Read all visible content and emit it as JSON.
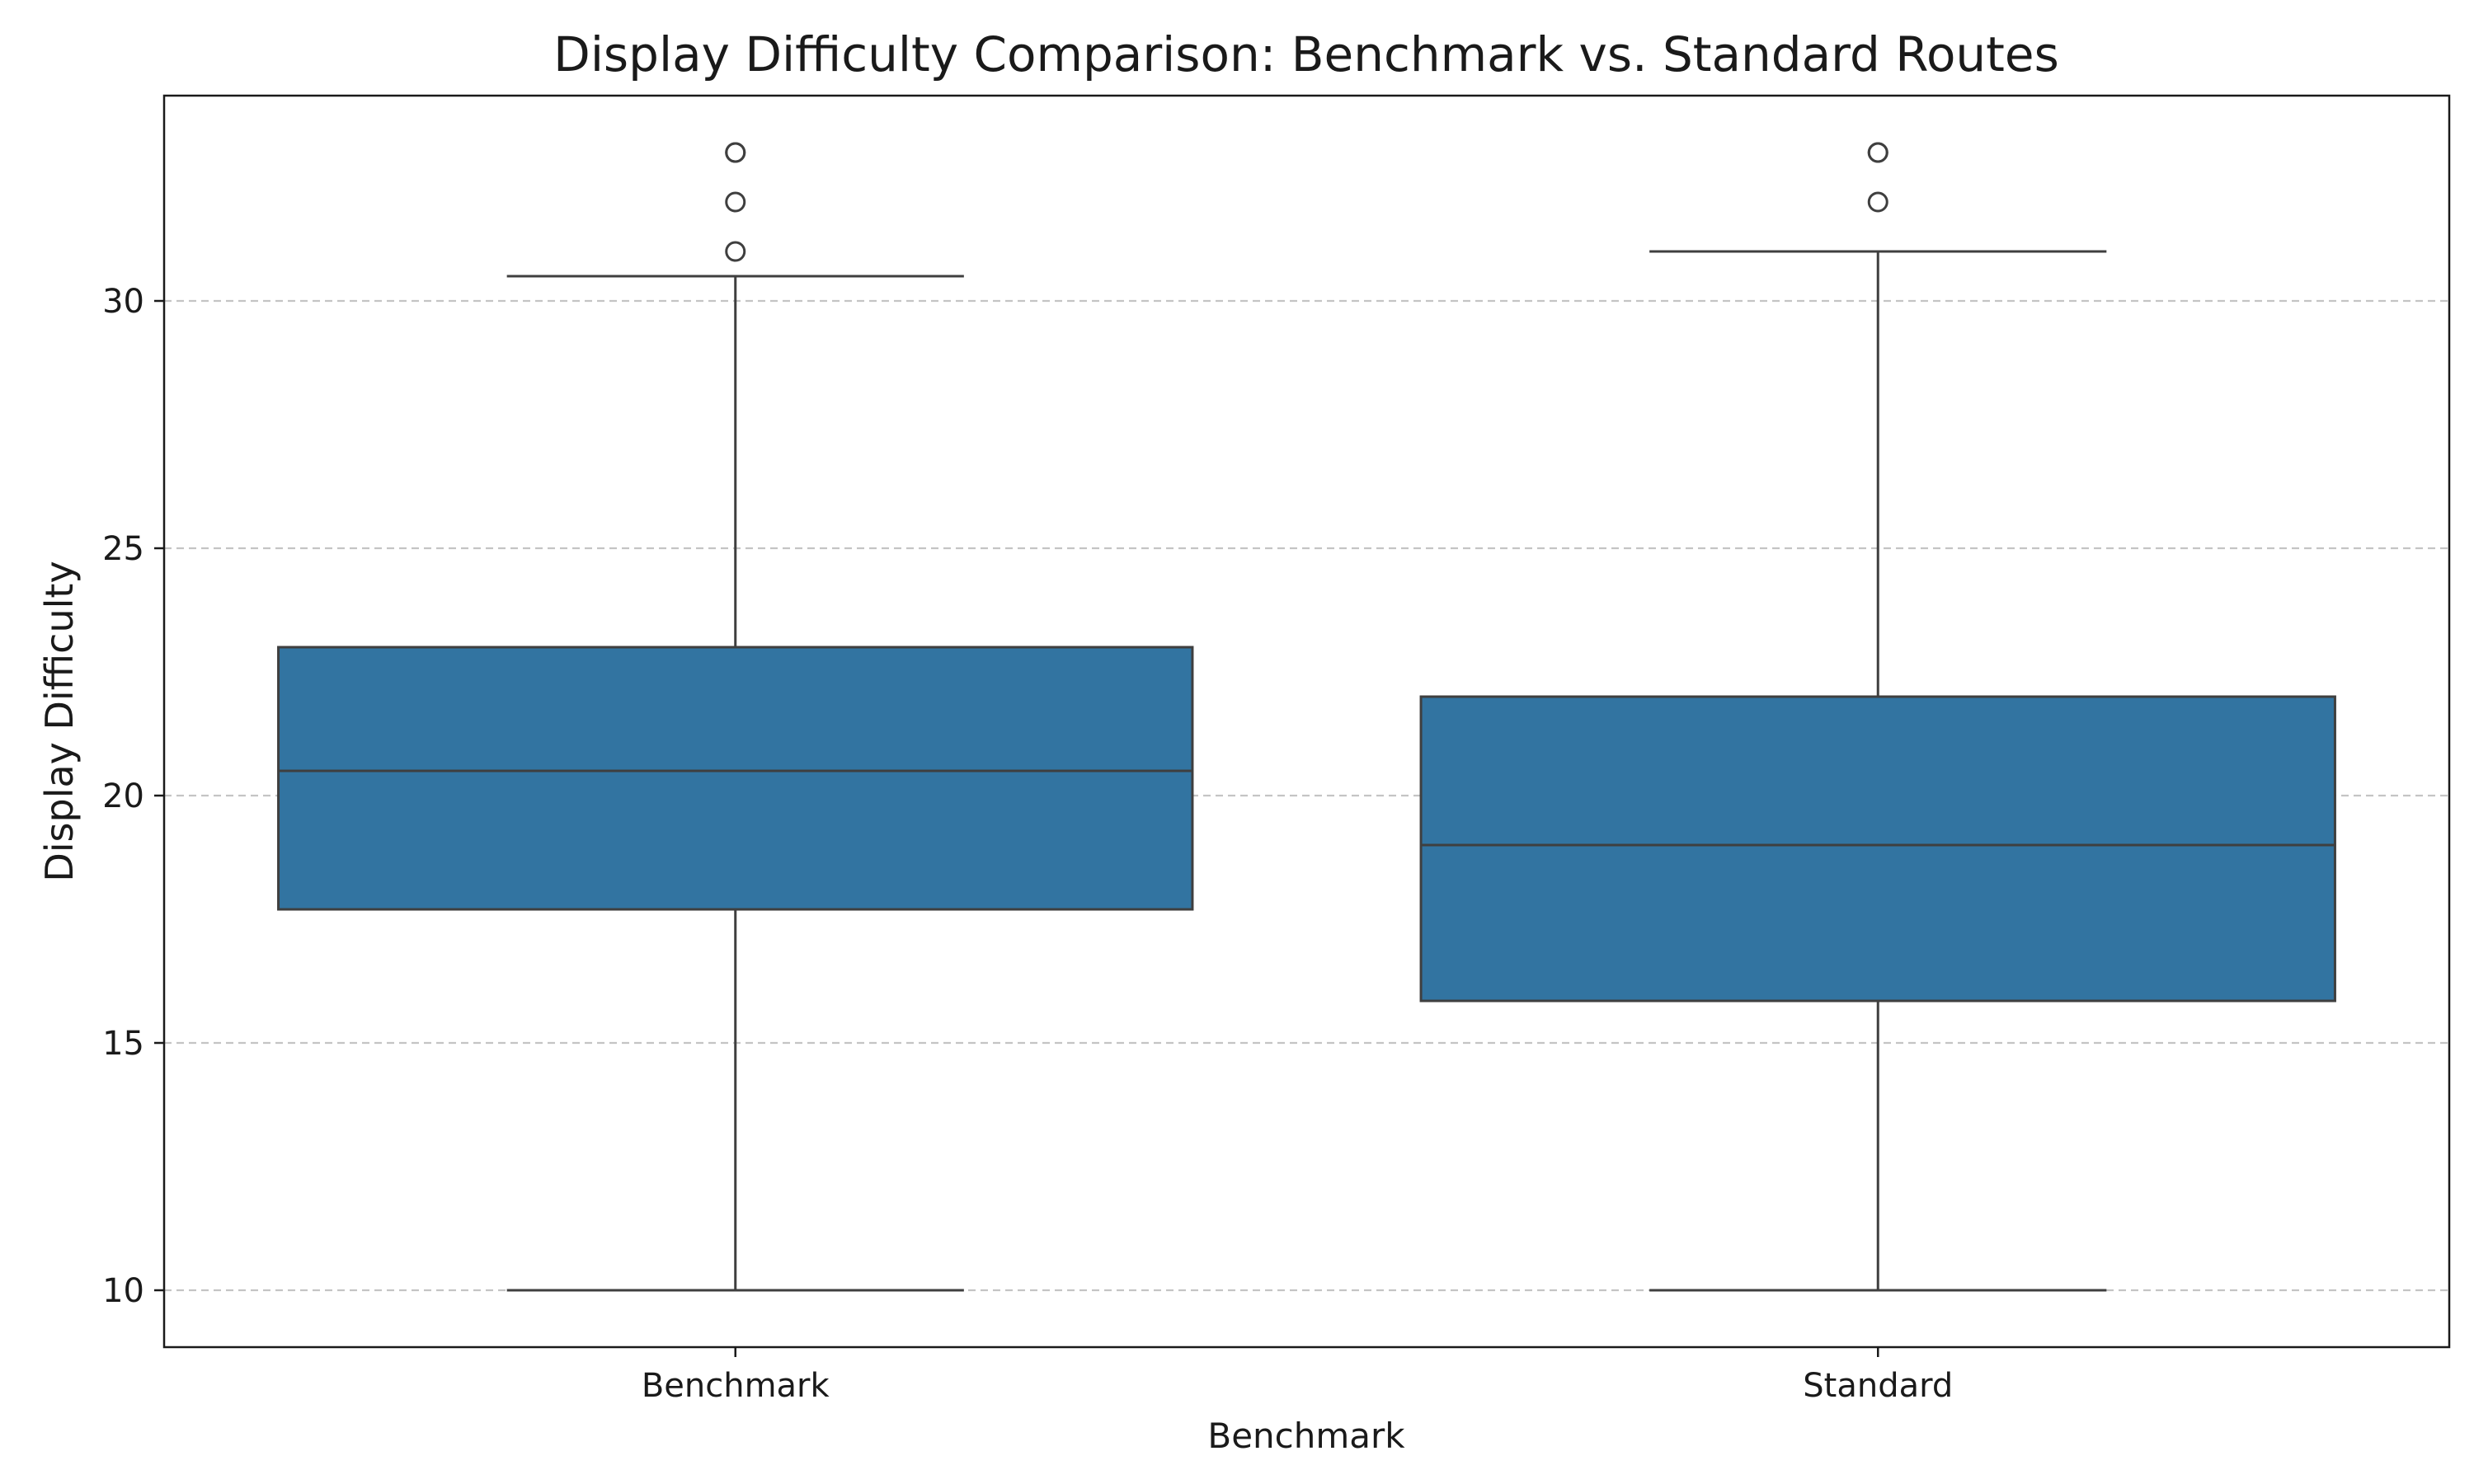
{
  "chart_data": {
    "type": "box",
    "title": "Display Difficulty Comparison: Benchmark vs. Standard Routes",
    "xlabel": "Benchmark",
    "ylabel": "Display Difficulty",
    "categories": [
      "Benchmark",
      "Standard"
    ],
    "ylim": [
      8.85,
      34.15
    ],
    "yticks": [
      10,
      15,
      20,
      25,
      30
    ],
    "grid": "y-dashed",
    "colors": {
      "box_fill": "#3274a1",
      "line": "#3f3f3f",
      "grid": "#c4c4c4",
      "axes": "#1a1a1a"
    },
    "boxes": [
      {
        "category": "Benchmark",
        "whisker_low": 10,
        "q1": 17.7,
        "median": 20.5,
        "q3": 23,
        "whisker_high": 30.5,
        "outliers": [
          31,
          32,
          33,
          33
        ]
      },
      {
        "category": "Standard",
        "whisker_low": 10,
        "q1": 15.85,
        "median": 19,
        "q3": 22,
        "whisker_high": 31,
        "outliers": [
          32,
          33,
          33
        ]
      }
    ]
  }
}
